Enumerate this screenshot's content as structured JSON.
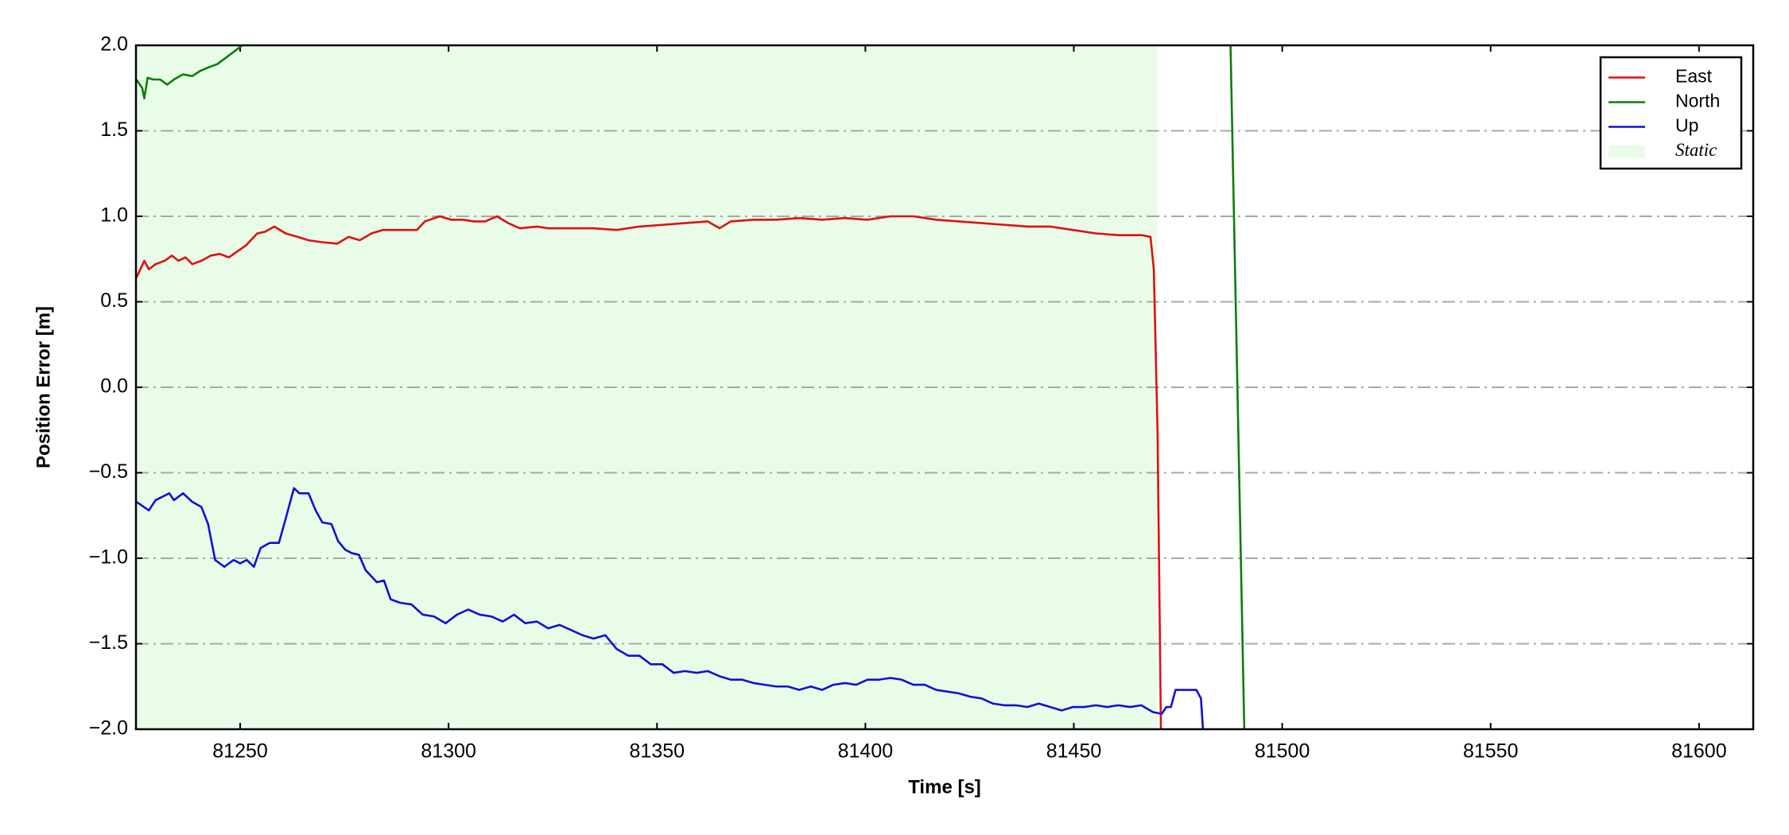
{
  "chart_data": {
    "type": "line",
    "xlabel": "Time [s]",
    "ylabel": "Position Error [m]",
    "xlim": [
      81225,
      81613
    ],
    "xticks": [
      81250,
      81300,
      81350,
      81400,
      81450,
      81500,
      81550,
      81600
    ],
    "ylim": [
      -2,
      2
    ],
    "yticks": [
      {
        "value": -2,
        "label": "−2.0"
      },
      {
        "value": -1.5,
        "label": "−1.5"
      },
      {
        "value": -1,
        "label": "−1.0"
      },
      {
        "value": -0.5,
        "label": "−0.5"
      },
      {
        "value": 0,
        "label": "0.0"
      },
      0.5,
      {
        "value": 1,
        "label": "1.0"
      },
      1.5,
      {
        "value": 2,
        "label": "2.0"
      }
    ],
    "grid": true,
    "legend": "upper right",
    "static": {
      "name": "Static",
      "color": "#e8fce8",
      "span": [
        81225,
        81470
      ]
    },
    "series": [
      {
        "name": "East",
        "color": "#e01010",
        "x": [
          81225.1,
          81227.0,
          81228.1,
          81229.7,
          81231.9,
          81233.6,
          81235.2,
          81236.9,
          81238.5,
          81240.7,
          81242.9,
          81245.1,
          81247.3,
          81251.4,
          81254.1,
          81256.0,
          81258.2,
          81260.9,
          81263.7,
          81266.4,
          81269.2,
          81273.3,
          81276.0,
          81278.7,
          81281.5,
          81284.2,
          81288.3,
          81292.4,
          81294.3,
          81297.9,
          81300.6,
          81303.4,
          81306.1,
          81308.8,
          81311.6,
          81314.3,
          81317.1,
          81321.2,
          81323.9,
          81329.4,
          81334.8,
          81340.3,
          81345.8,
          81351.3,
          81356.7,
          81362.2,
          81365.0,
          81367.7,
          81373.2,
          81378.6,
          81384.1,
          81389.6,
          81395.1,
          81400.5,
          81406.0,
          81411.5,
          81417.0,
          81422.4,
          81427.9,
          81433.4,
          81438.9,
          81444.3,
          81449.8,
          81455.3,
          81460.7,
          81466.2,
          81468.4,
          81469.2,
          81470.1,
          81470.9
        ],
        "values": [
          0.64,
          0.74,
          0.69,
          0.72,
          0.74,
          0.77,
          0.74,
          0.76,
          0.72,
          0.74,
          0.77,
          0.78,
          0.76,
          0.83,
          0.9,
          0.91,
          0.94,
          0.9,
          0.88,
          0.86,
          0.85,
          0.84,
          0.88,
          0.86,
          0.9,
          0.92,
          0.92,
          0.92,
          0.97,
          1.0,
          0.98,
          0.98,
          0.97,
          0.97,
          1.0,
          0.96,
          0.93,
          0.94,
          0.93,
          0.93,
          0.93,
          0.92,
          0.94,
          0.95,
          0.96,
          0.97,
          0.93,
          0.97,
          0.98,
          0.98,
          0.99,
          0.98,
          0.99,
          0.98,
          1.0,
          1.0,
          0.98,
          0.97,
          0.96,
          0.95,
          0.94,
          0.94,
          0.92,
          0.9,
          0.89,
          0.89,
          0.88,
          0.69,
          -0.27,
          -2.0
        ]
      },
      {
        "name": "North",
        "color": "#0a7d0a",
        "x": [
          81225.1,
          81226.5,
          81227.0,
          81227.8,
          81229.2,
          81230.8,
          81232.5,
          81234.1,
          81236.3,
          81238.5,
          81240.4,
          81242.3,
          81244.5,
          81246.7,
          81248.9,
          81250.5,
          81252.0,
          81486.0,
          81487.6,
          81490.9
        ],
        "values": [
          1.8,
          1.75,
          1.69,
          1.81,
          1.8,
          1.8,
          1.77,
          1.8,
          1.83,
          1.82,
          1.85,
          1.87,
          1.89,
          1.93,
          1.97,
          2.0,
          2.05,
          2.05,
          2.0,
          -2.0
        ]
      },
      {
        "name": "Up",
        "color": "#1010d8",
        "x": [
          81225.1,
          81228.1,
          81229.7,
          81233.0,
          81234.1,
          81236.3,
          81238.5,
          81240.7,
          81242.3,
          81244.0,
          81246.2,
          81248.4,
          81250.0,
          81251.6,
          81253.3,
          81254.9,
          81257.1,
          81259.3,
          81260.9,
          81262.9,
          81264.2,
          81266.4,
          81268.1,
          81269.7,
          81271.9,
          81273.5,
          81275.2,
          81276.8,
          81278.5,
          81280.1,
          81282.8,
          81284.5,
          81286.1,
          81288.3,
          81291.1,
          81293.8,
          81296.5,
          81299.3,
          81302.0,
          81304.7,
          81307.5,
          81310.2,
          81313.0,
          81315.7,
          81318.4,
          81321.2,
          81323.9,
          81326.6,
          81329.4,
          81332.1,
          81334.8,
          81337.6,
          81340.3,
          81343.1,
          81345.8,
          81348.5,
          81351.3,
          81354.0,
          81356.7,
          81359.5,
          81362.2,
          81365.0,
          81367.7,
          81370.4,
          81373.2,
          81375.9,
          81378.6,
          81381.4,
          81384.1,
          81386.9,
          81389.6,
          81392.3,
          81395.1,
          81397.8,
          81400.5,
          81403.3,
          81406.0,
          81408.7,
          81411.5,
          81414.2,
          81417.0,
          81419.7,
          81422.4,
          81425.2,
          81427.9,
          81430.6,
          81433.4,
          81436.1,
          81438.9,
          81441.6,
          81444.3,
          81447.1,
          81449.8,
          81452.5,
          81455.3,
          81458.0,
          81460.7,
          81463.5,
          81466.2,
          81469.0,
          81471.1,
          81472.2,
          81473.3,
          81474.4,
          81477.2,
          81479.4,
          81480.5,
          81481.0
        ],
        "values": [
          -0.67,
          -0.72,
          -0.66,
          -0.62,
          -0.66,
          -0.62,
          -0.67,
          -0.7,
          -0.8,
          -1.01,
          -1.05,
          -1.01,
          -1.03,
          -1.01,
          -1.05,
          -0.94,
          -0.91,
          -0.91,
          -0.77,
          -0.59,
          -0.62,
          -0.62,
          -0.72,
          -0.79,
          -0.8,
          -0.9,
          -0.95,
          -0.97,
          -0.98,
          -1.07,
          -1.14,
          -1.13,
          -1.24,
          -1.26,
          -1.27,
          -1.33,
          -1.34,
          -1.38,
          -1.33,
          -1.3,
          -1.33,
          -1.34,
          -1.37,
          -1.33,
          -1.38,
          -1.37,
          -1.41,
          -1.39,
          -1.42,
          -1.45,
          -1.47,
          -1.45,
          -1.53,
          -1.57,
          -1.57,
          -1.62,
          -1.62,
          -1.67,
          -1.66,
          -1.67,
          -1.66,
          -1.69,
          -1.71,
          -1.71,
          -1.73,
          -1.74,
          -1.75,
          -1.75,
          -1.77,
          -1.75,
          -1.77,
          -1.74,
          -1.73,
          -1.74,
          -1.71,
          -1.71,
          -1.7,
          -1.71,
          -1.74,
          -1.74,
          -1.77,
          -1.78,
          -1.79,
          -1.81,
          -1.82,
          -1.85,
          -1.86,
          -1.86,
          -1.87,
          -1.85,
          -1.87,
          -1.89,
          -1.87,
          -1.87,
          -1.86,
          -1.87,
          -1.86,
          -1.87,
          -1.86,
          -1.9,
          -1.91,
          -1.87,
          -1.87,
          -1.77,
          -1.77,
          -1.77,
          -1.82,
          -2.0
        ]
      }
    ]
  }
}
